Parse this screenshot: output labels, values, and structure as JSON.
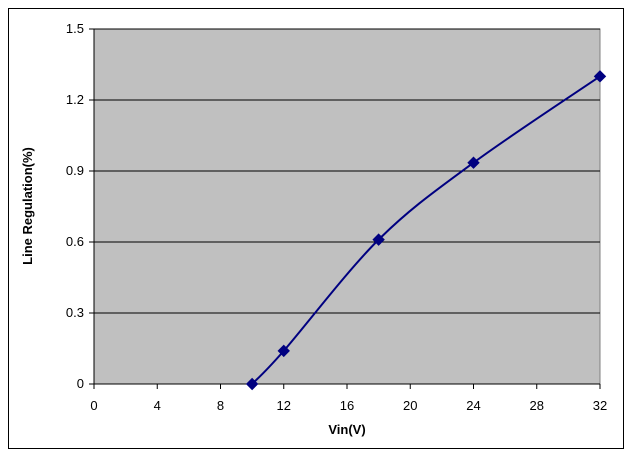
{
  "chart_data": {
    "type": "line",
    "title": "",
    "xlabel": "Vin(V)",
    "ylabel": "Line Regulation(%)",
    "xlim": [
      0,
      32
    ],
    "ylim": [
      0,
      1.5
    ],
    "x_ticks": [
      "0",
      "4",
      "8",
      "12",
      "16",
      "20",
      "24",
      "28",
      "32"
    ],
    "y_ticks": [
      "0",
      "0.3",
      "0.6",
      "0.9",
      "1.2",
      "1.5"
    ],
    "grid": "horizontal",
    "legend": "none",
    "series": [
      {
        "x": [
          10,
          12,
          18,
          24,
          32
        ],
        "y": [
          0,
          0.14,
          0.61,
          0.935,
          1.3
        ],
        "color": "#000080",
        "marker": "diamond"
      }
    ],
    "plot_background": "#c0c0c0"
  }
}
